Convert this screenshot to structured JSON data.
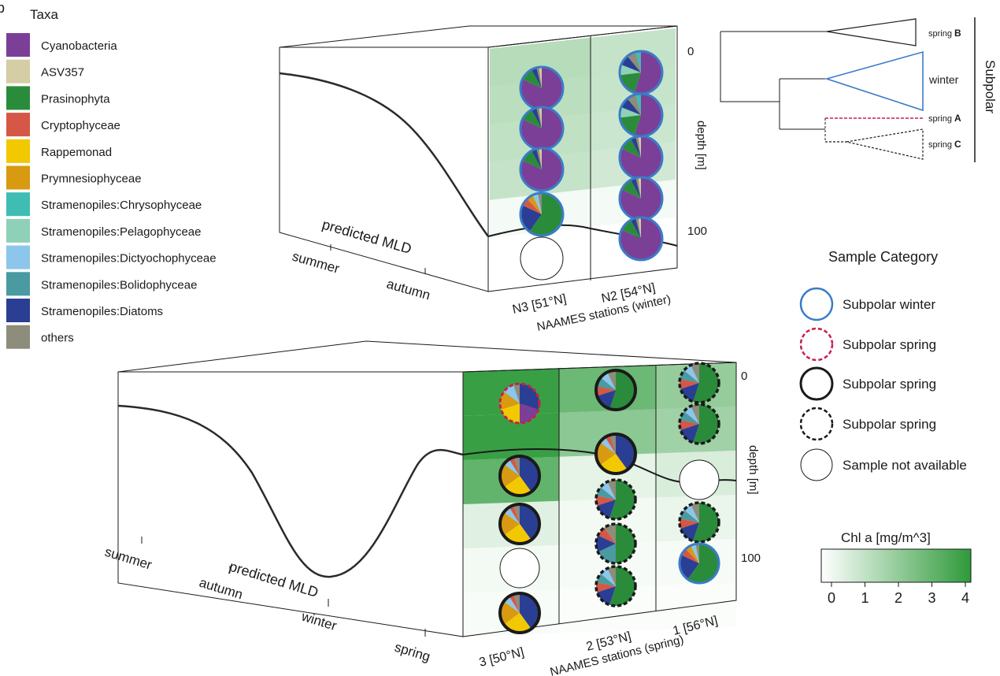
{
  "panel_letter": "b",
  "legend": {
    "title": "Taxa",
    "items": [
      {
        "label": "Cyanobacteria",
        "color": "#7b3f98"
      },
      {
        "label": "ASV357",
        "color": "#d5cda3"
      },
      {
        "label": "Prasinophyta",
        "color": "#2a8c3b"
      },
      {
        "label": "Cryptophyceae",
        "color": "#d65745"
      },
      {
        "label": "Rappemonad",
        "color": "#f2c800"
      },
      {
        "label": "Prymnesiophyceae",
        "color": "#d89a10"
      },
      {
        "label": "Stramenopiles:Chrysophyceae",
        "color": "#3fbcb4"
      },
      {
        "label": "Stramenopiles:Pelagophyceae",
        "color": "#8fd0b8"
      },
      {
        "label": "Stramenopiles:Dictyochophyceae",
        "color": "#8cc6ea"
      },
      {
        "label": "Stramenopiles:Bolidophyceae",
        "color": "#4a9aa2"
      },
      {
        "label": "Stramenopiles:Diatoms",
        "color": "#2a3f93"
      },
      {
        "label": "others",
        "color": "#8e8c7a"
      }
    ]
  },
  "top_panel": {
    "season_labels": [
      "summer",
      "autumn"
    ],
    "mld_label": "predicted MLD",
    "stations": [
      "N3 [51°N]",
      "N2 [54°N]"
    ],
    "axis_title": "NAAMES stations (winter)",
    "depth_label": "depth [m]",
    "depth_ticks": [
      "0",
      "100"
    ]
  },
  "bottom_panel": {
    "season_labels": [
      "summer",
      "autumn",
      "winter",
      "spring"
    ],
    "mld_label": "predicted MLD",
    "stations": [
      "3 [50°N]",
      "2 [53°N]",
      "1 [56°N]"
    ],
    "axis_title": "NAAMES stations (spring)",
    "depth_label": "depth [m]",
    "depth_ticks": [
      "0",
      "100"
    ]
  },
  "tree": {
    "leaves": [
      {
        "pre": "spring",
        "bold": "B"
      },
      {
        "pre": "winter",
        "bold": ""
      },
      {
        "pre": "spring",
        "bold": "A"
      },
      {
        "pre": "spring",
        "bold": "C"
      }
    ],
    "group_label": "Subpolar"
  },
  "sample_category": {
    "title": "Sample Category",
    "items": [
      "Subpolar winter",
      "Subpolar spring",
      "Subpolar spring",
      "Subpolar spring",
      "Sample not available"
    ]
  },
  "colorbar": {
    "title": "Chl a [mg/m^3]",
    "ticks": [
      "0",
      "1",
      "2",
      "3",
      "4"
    ],
    "color_low": "#ffffff",
    "color_high": "#2e9a3a"
  }
}
